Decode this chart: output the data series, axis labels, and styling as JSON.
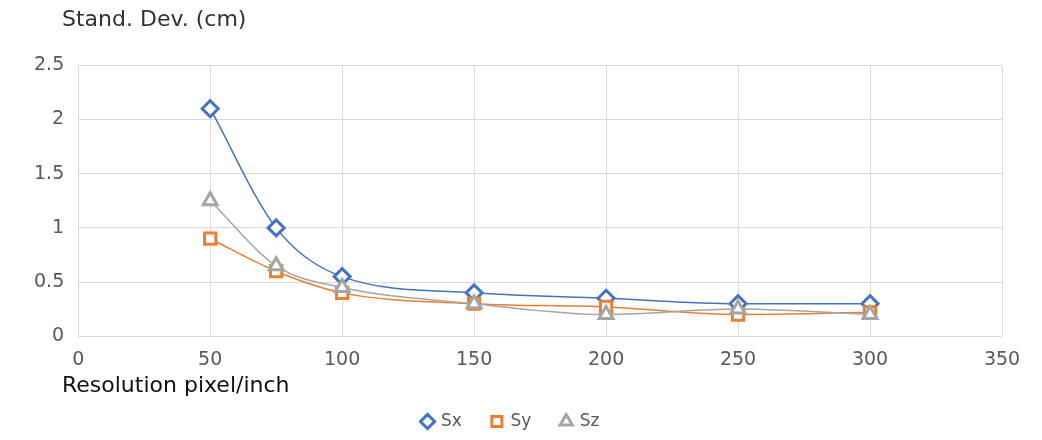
{
  "chart_data": {
    "type": "line",
    "ylabel": "Stand. Dev. (cm)",
    "xlabel": "Resolution pixel/inch",
    "x": [
      50,
      75,
      100,
      150,
      200,
      250,
      300
    ],
    "series": [
      {
        "name": "Sx",
        "color": "#4472c4",
        "marker": "diamond",
        "values": [
          2.1,
          1.0,
          0.55,
          0.4,
          0.35,
          0.3,
          0.3
        ]
      },
      {
        "name": "Sy",
        "color": "#ed7d31",
        "marker": "square",
        "values": [
          0.9,
          0.6,
          0.4,
          0.3,
          0.27,
          0.2,
          0.22
        ]
      },
      {
        "name": "Sz",
        "color": "#a5a5a5",
        "marker": "triangle",
        "values": [
          1.25,
          0.65,
          0.45,
          0.3,
          0.2,
          0.25,
          0.2
        ]
      }
    ],
    "xlim": [
      0,
      350
    ],
    "xticks": [
      0,
      50,
      100,
      150,
      200,
      250,
      300,
      350
    ],
    "ylim": [
      0,
      2.5
    ],
    "yticks": [
      0,
      0.5,
      1,
      1.5,
      2,
      2.5
    ],
    "grid": true,
    "legend": "bottom"
  }
}
